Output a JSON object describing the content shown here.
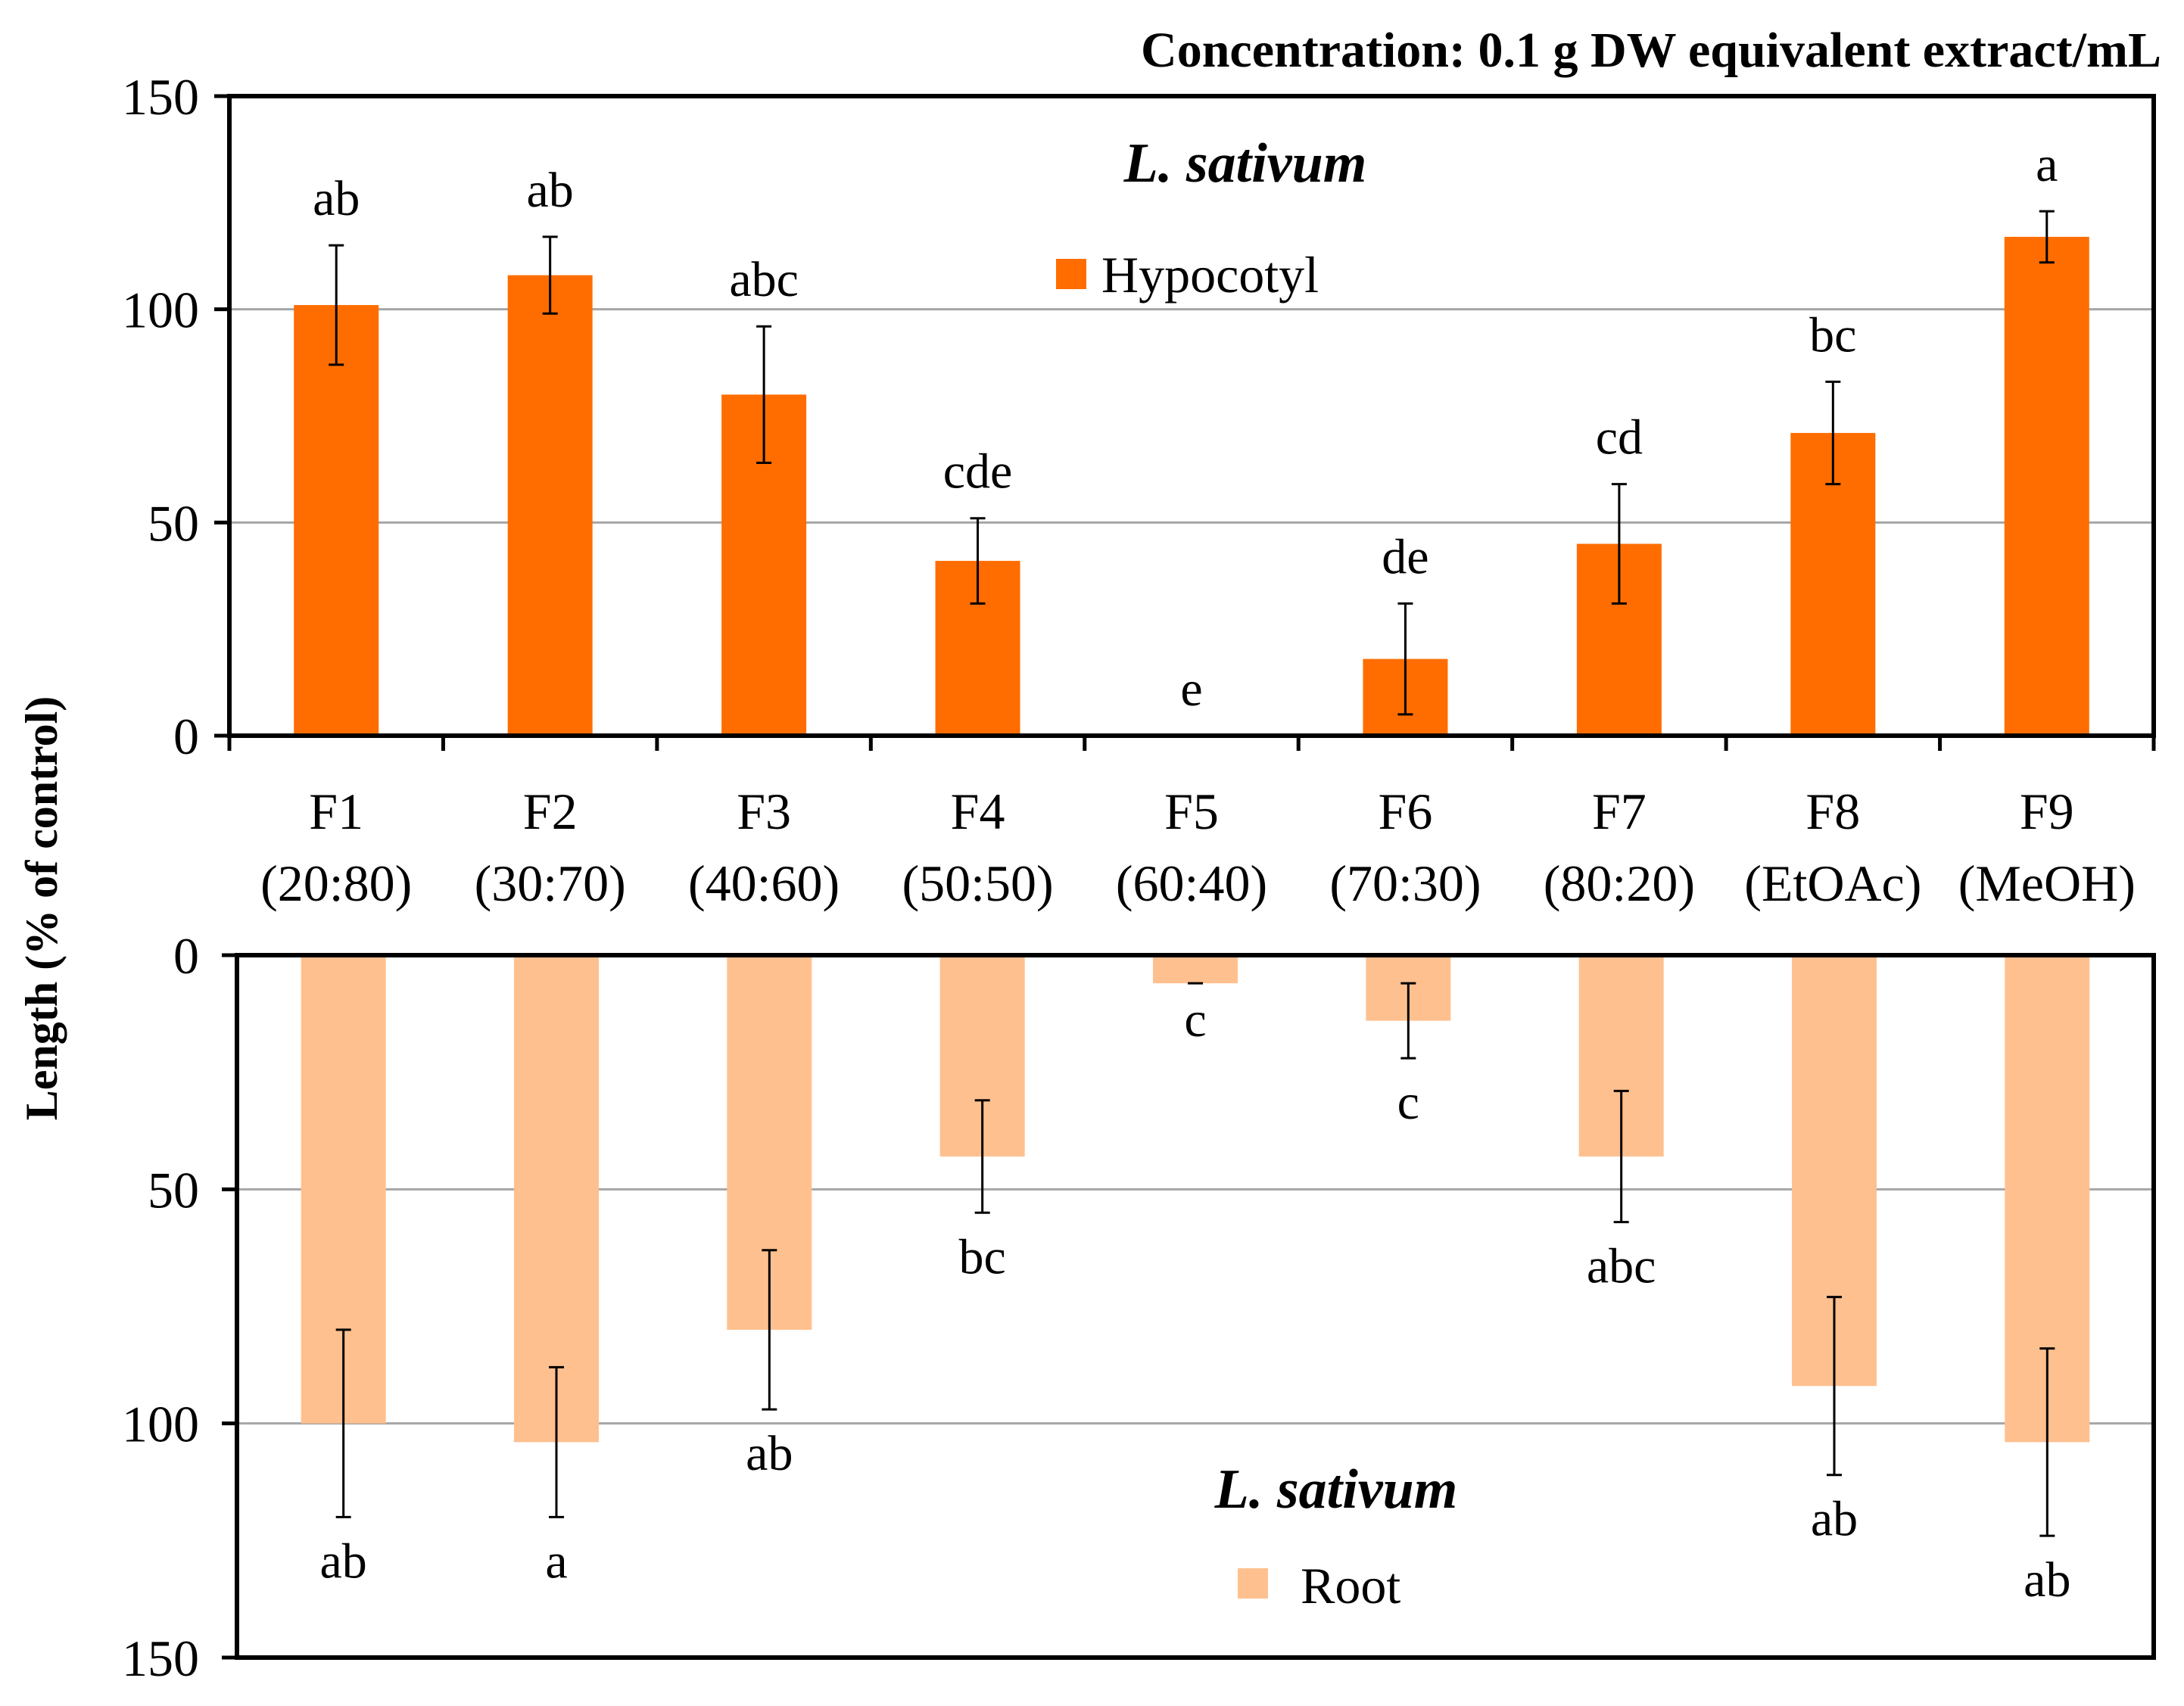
{
  "figure_title": "Concentration: 0.1 g DW equivalent extract/mL",
  "ylabel": "Length (% of control)",
  "colors": {
    "hypocotyl": "#FF6D00",
    "root": "#FFC08F",
    "axis": "#000000",
    "grid": "#A6A6A6"
  },
  "categories": [
    {
      "code": "F1",
      "solvent": "(20:80)"
    },
    {
      "code": "F2",
      "solvent": "(30:70)"
    },
    {
      "code": "F3",
      "solvent": "(40:60)"
    },
    {
      "code": "F4",
      "solvent": "(50:50)"
    },
    {
      "code": "F5",
      "solvent": "(60:40)"
    },
    {
      "code": "F6",
      "solvent": "(70:30)"
    },
    {
      "code": "F7",
      "solvent": "(80:20)"
    },
    {
      "code": "F8",
      "solvent": "(EtOAc)"
    },
    {
      "code": "F9",
      "solvent": "(MeOH)"
    }
  ],
  "chart_data": [
    {
      "type": "bar",
      "panel": "top",
      "title": "L. sativum",
      "series_name": "Hypocotyl",
      "legend_position": "top-center",
      "ylim": [
        0,
        150
      ],
      "yticks": [
        0,
        50,
        100,
        150
      ],
      "grid": true,
      "values": [
        101,
        108,
        80,
        41,
        0,
        18,
        45,
        71,
        117
      ],
      "errors": [
        14,
        9,
        16,
        10,
        0,
        13,
        14,
        12,
        6
      ],
      "letters": [
        "ab",
        "ab",
        "abc",
        "cde",
        "e",
        "de",
        "cd",
        "bc",
        "a"
      ]
    },
    {
      "type": "bar",
      "panel": "bottom",
      "orientation": "downward",
      "title": "L. sativum",
      "series_name": "Root",
      "legend_position": "bottom-center",
      "ylim": [
        0,
        150
      ],
      "yticks": [
        0,
        50,
        100,
        150
      ],
      "grid": true,
      "values": [
        100,
        104,
        80,
        43,
        6,
        14,
        43,
        92,
        104
      ],
      "errors": [
        20,
        16,
        17,
        12,
        0,
        8,
        14,
        19,
        20
      ],
      "letters": [
        "ab",
        "a",
        "ab",
        "bc",
        "c",
        "c",
        "abc",
        "ab",
        "ab"
      ]
    }
  ]
}
